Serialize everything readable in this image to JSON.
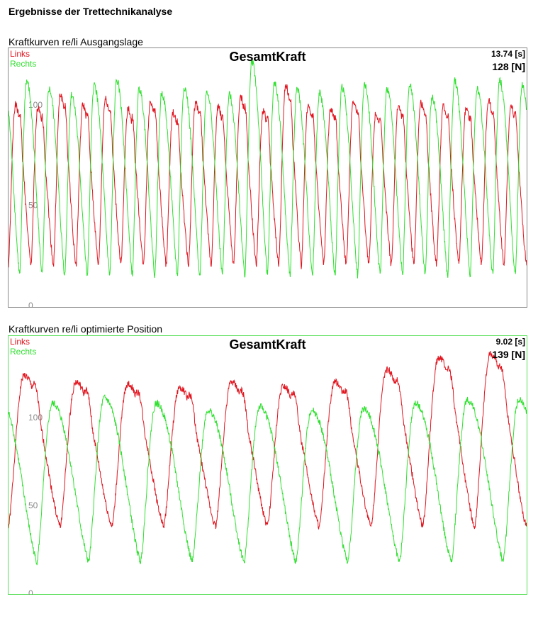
{
  "page_title": "Ergebnisse der Trettechnikanalyse",
  "sections": [
    {
      "title": "Kraftkurven re/li Ausgangslage",
      "time": "13.74 [s]",
      "force": "128 [N]"
    },
    {
      "title": "Kraftkurven re/li optimierte Position",
      "time": "9.02 [s]",
      "force": "139 [N]"
    }
  ],
  "colors": {
    "links": "#e0141e",
    "rechts": "#30e030",
    "frame1": "#888888",
    "frame2": "#5be05b"
  },
  "chart_data": [
    {
      "type": "line",
      "title": "GesamtKraft",
      "ylim": [
        0,
        122
      ],
      "y_ticks": [
        "0",
        "50",
        "100"
      ],
      "grid": false,
      "legend_position": "top-left",
      "x_range": [
        0,
        13.74
      ],
      "series": [
        {
          "name": "Links",
          "color": "#e0141e",
          "cycles": 23,
          "phase": 0.0,
          "peak": 100,
          "trough": 20,
          "peak_values": [
            100,
            98,
            105,
            100,
            103,
            98,
            102,
            96,
            101,
            99,
            104,
            97,
            110,
            100,
            98,
            102,
            96,
            100,
            101,
            99,
            98,
            102,
            100
          ],
          "has_shoulder": true
        },
        {
          "name": "Rechts",
          "color": "#30e030",
          "cycles": 23,
          "phase": 0.5,
          "peak": 108,
          "trough": 15,
          "peak_values": [
            110,
            112,
            108,
            105,
            110,
            112,
            108,
            106,
            109,
            107,
            105,
            122,
            111,
            108,
            106,
            109,
            110,
            108,
            110,
            104,
            112,
            108,
            112
          ],
          "has_shoulder": false
        }
      ]
    },
    {
      "type": "line",
      "title": "GesamtKraft",
      "ylim": [
        0,
        139
      ],
      "y_ticks": [
        "0",
        "50",
        "100"
      ],
      "grid": false,
      "legend_position": "top-left",
      "x_range": [
        0,
        9.02
      ],
      "series": [
        {
          "name": "Links",
          "color": "#e0141e",
          "cycles": 10,
          "phase": 0.0,
          "peak": 118,
          "trough": 38,
          "peak_values": [
            124,
            120,
            119,
            117,
            120,
            118,
            120,
            127,
            134,
            136
          ],
          "has_shoulder": true
        },
        {
          "name": "Rechts",
          "color": "#30e030",
          "cycles": 10,
          "phase": 0.45,
          "peak": 108,
          "trough": 18,
          "peak_values": [
            110,
            108,
            111,
            108,
            104,
            106,
            104,
            105,
            108,
            110
          ],
          "has_shoulder": false
        }
      ]
    }
  ]
}
